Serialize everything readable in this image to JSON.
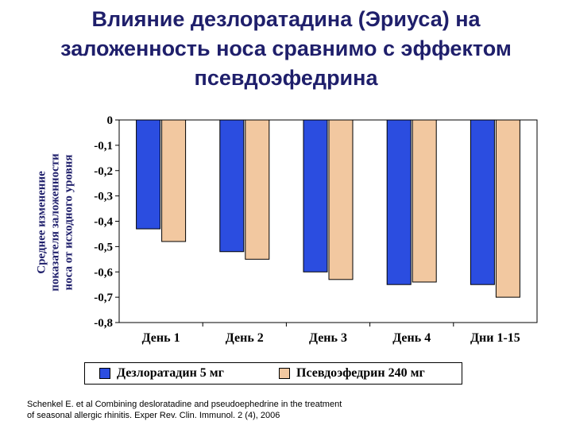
{
  "title_lines": [
    "Влияние дезлоратадина (Эриуса) на",
    "заложенность носа сравнимо с эффектом",
    "псевдоэфедрина"
  ],
  "footnote_lines": [
    "Schenkel E. et al Combining desloratadine and pseudoephedrine in the treatment",
    "of seasonal allergic rhinitis. Exper Rev. Clin. Immunol. 2 (4), 2006"
  ],
  "colors": {
    "series1": "#2b4de0",
    "series2": "#f2c8a0",
    "title": "#1f1f6b",
    "ylabel": "#1f1f6b"
  },
  "chart_data": {
    "type": "bar",
    "ylabel_lines": [
      "Среднее изменение",
      "показателя заложенности",
      "носа от исходного уровня"
    ],
    "categories": [
      "День 1",
      "День 2",
      "День 3",
      "День 4",
      "Дни 1-15"
    ],
    "series": [
      {
        "name": "Дезлоратадин 5 мг",
        "values": [
          -0.43,
          -0.52,
          -0.6,
          -0.65,
          -0.65
        ]
      },
      {
        "name": "Псевдоэфедрин 240 мг",
        "values": [
          -0.48,
          -0.55,
          -0.63,
          -0.64,
          -0.7
        ]
      }
    ],
    "ylim": [
      -0.8,
      0
    ],
    "yticks": [
      0,
      -0.1,
      -0.2,
      -0.3,
      -0.4,
      -0.5,
      -0.6,
      -0.7,
      -0.8
    ],
    "ytick_labels": [
      "0",
      "-0,1",
      "-0,2",
      "-0,3",
      "-0,4",
      "-0,5",
      "-0,6",
      "-0,7",
      "-0,8"
    ],
    "legend_position": "bottom",
    "grid": false
  }
}
